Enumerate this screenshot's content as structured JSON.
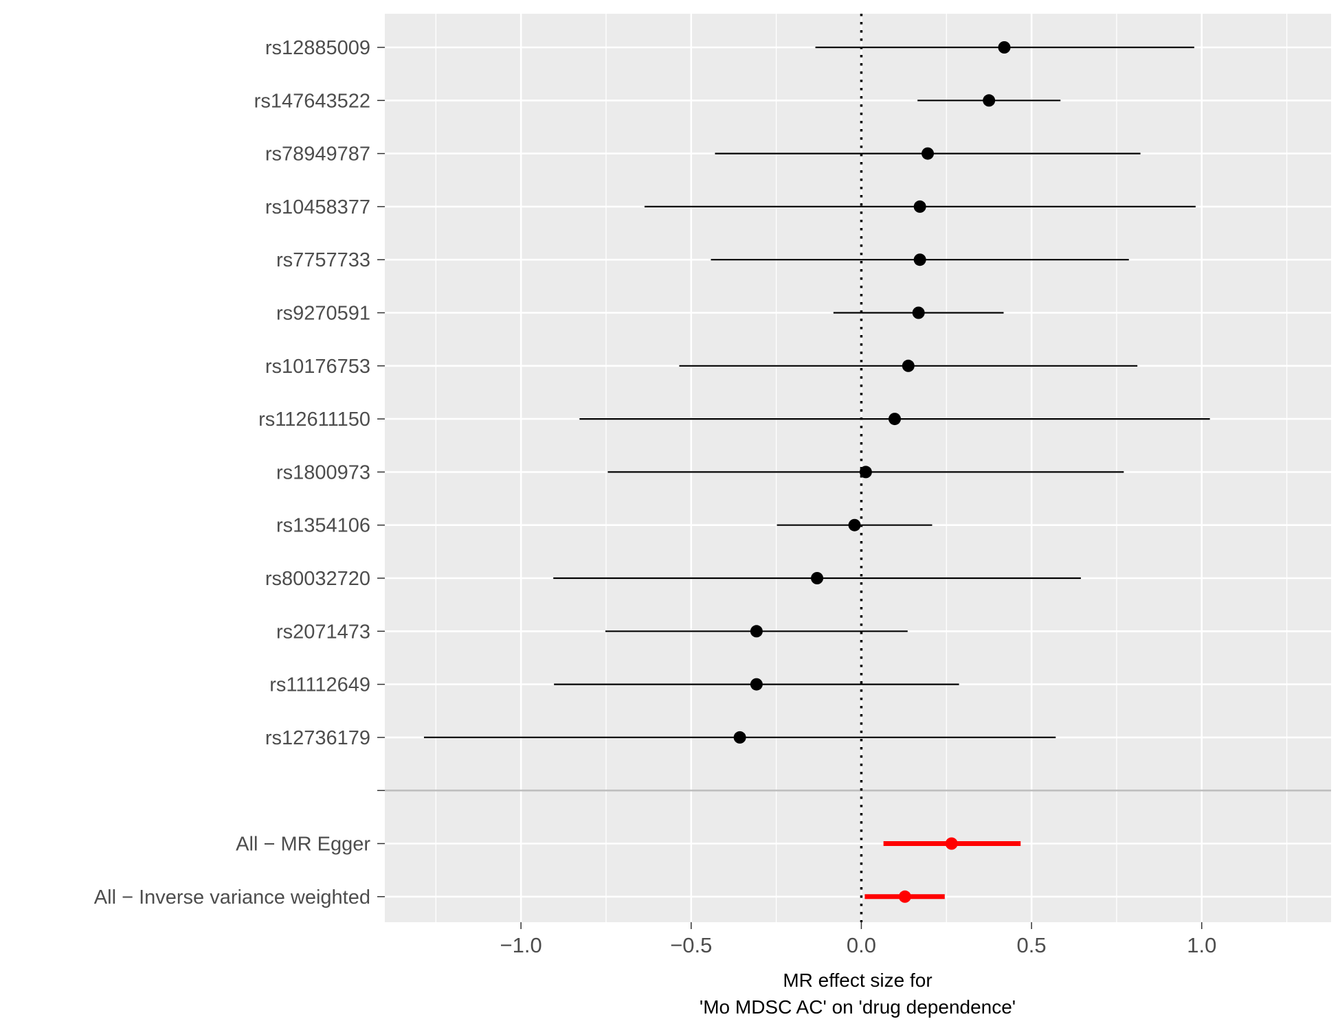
{
  "chart_data": {
    "type": "forest",
    "xlabel_line1": "MR effect size for",
    "xlabel_line2": "'Mo MDSC AC' on 'drug dependence'",
    "xlim": [
      -1.4,
      1.38
    ],
    "x_ticks": [
      -1.0,
      -0.5,
      0.0,
      0.5,
      1.0
    ],
    "x_tick_labels": [
      "−1.0",
      "−0.5",
      "0.0",
      "0.5",
      "1.0"
    ],
    "reference_line": 0,
    "colors": {
      "panel": "#ebebeb",
      "grid": "#ffffff",
      "snp": "#000000",
      "summary": "#ff0000",
      "separator": "#bebebe",
      "axis_text": "#4d4d4d"
    },
    "snps": [
      {
        "label": "rs12885009",
        "beta": 0.42,
        "lo": -0.135,
        "hi": 0.978
      },
      {
        "label": "rs147643522",
        "beta": 0.375,
        "lo": 0.165,
        "hi": 0.585
      },
      {
        "label": "rs78949787",
        "beta": 0.195,
        "lo": -0.43,
        "hi": 0.82
      },
      {
        "label": "rs10458377",
        "beta": 0.172,
        "lo": -0.637,
        "hi": 0.982
      },
      {
        "label": "rs7757733",
        "beta": 0.172,
        "lo": -0.442,
        "hi": 0.786
      },
      {
        "label": "rs9270591",
        "beta": 0.168,
        "lo": -0.082,
        "hi": 0.418
      },
      {
        "label": "rs10176753",
        "beta": 0.138,
        "lo": -0.535,
        "hi": 0.811
      },
      {
        "label": "rs112611150",
        "beta": 0.098,
        "lo": -0.828,
        "hi": 1.024
      },
      {
        "label": "rs1800973",
        "beta": 0.013,
        "lo": -0.745,
        "hi": 0.771
      },
      {
        "label": "rs1354106",
        "beta": -0.02,
        "lo": -0.248,
        "hi": 0.208
      },
      {
        "label": "rs80032720",
        "beta": -0.13,
        "lo": -0.905,
        "hi": 0.645
      },
      {
        "label": "rs2071473",
        "beta": -0.308,
        "lo": -0.752,
        "hi": 0.136
      },
      {
        "label": "rs11112649",
        "beta": -0.308,
        "lo": -0.903,
        "hi": 0.287
      },
      {
        "label": "rs12736179",
        "beta": -0.357,
        "lo": -1.285,
        "hi": 0.571
      }
    ],
    "summaries": [
      {
        "label": "All − MR Egger",
        "beta": 0.265,
        "lo": 0.065,
        "hi": 0.468
      },
      {
        "label": "All − Inverse variance weighted",
        "beta": 0.128,
        "lo": 0.01,
        "hi": 0.245
      }
    ]
  }
}
